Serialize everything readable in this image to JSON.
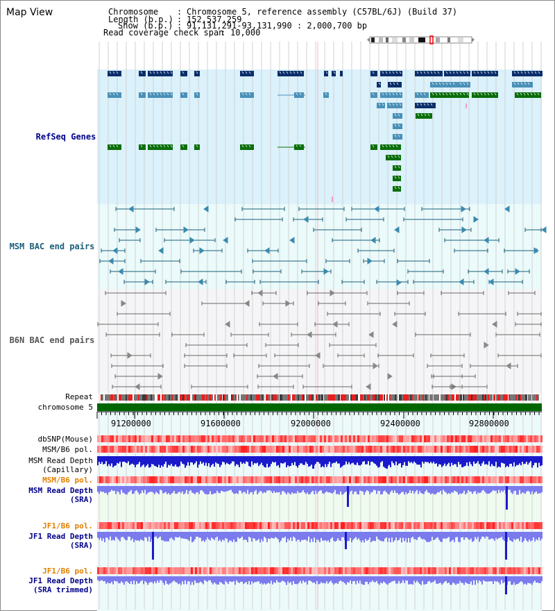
{
  "app": {
    "title": "Map View"
  },
  "info": {
    "chromosome_key": "Chromosome",
    "chromosome_val": "Chromosome 5, reference assembly (C57BL/6J) (Build 37)",
    "length_key": "Length (b.p.)",
    "length_val": "152,537,259",
    "show_key": "Show (b.p.)",
    "show_val": "91,131,291-93,131,990 : 2,000,700 bp",
    "coverage_key": "Read coverage check span",
    "coverage_val": "10,000"
  },
  "tracks": {
    "refseq": "RefSeq Genes",
    "msm_bac": "MSM BAC end pairs",
    "b6n_bac": "B6N BAC end pairs",
    "repeat": "Repeat",
    "chromosome": "chromosome 5",
    "dbsnp": "dbSNP(Mouse)",
    "msm_b6_pol_1": "MSM/B6 pol.",
    "msm_read_depth_cap": "MSM Read Depth",
    "msm_read_depth_cap_sub": "(Capillary)",
    "msm_b6_pol_2": "MSM/B6 pol.",
    "msm_read_depth_sra": "MSM Read Depth",
    "msm_read_depth_sra_sub": "(SRA)",
    "jf1_b6_pol_1": "JF1/B6 pol.",
    "jf1_read_depth_sra": "JF1 Read Depth",
    "jf1_read_depth_sra_sub": "(SRA)",
    "jf1_b6_pol_2": "JF1/B6 pol.",
    "jf1_read_depth_trim": "JF1 Read Depth",
    "jf1_read_depth_trim_sub": "(SRA trimmed)"
  },
  "ruler": {
    "ticks": [
      "91200000",
      "91600000",
      "92000000",
      "92400000",
      "92800000"
    ]
  },
  "colors": {
    "refseq_bg": "#dbf1fb",
    "msm_bg": "#ebfafa",
    "b6n_bg": "#f5f5f7",
    "gene_navy": "#0b2e6b",
    "gene_steel": "#4a90b8",
    "gene_green": "#0a6e0a",
    "msm_line": "#1a5f7a",
    "b6n_line": "#666666",
    "chrom_green": "#006600",
    "depth_blue": "#1a1acc",
    "depth_light": "#7b7bee",
    "label_navy": "#00008b",
    "label_teal": "#1a5f7a",
    "label_orange": "#e08000"
  }
}
